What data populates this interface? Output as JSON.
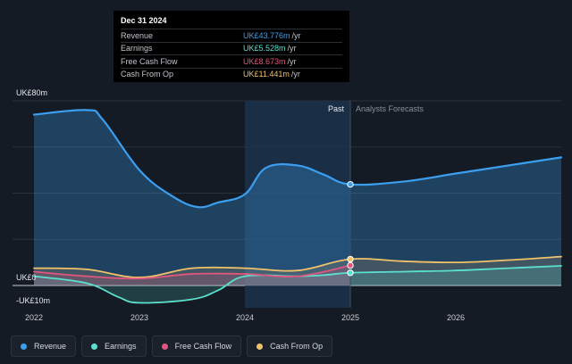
{
  "tooltip": {
    "date": "Dec 31 2024",
    "rows": [
      {
        "label": "Revenue",
        "value": "UK£43.776m",
        "unit": "/yr",
        "color": "#3b9ff0"
      },
      {
        "label": "Earnings",
        "value": "UK£5.528m",
        "unit": "/yr",
        "color": "#5be0d0"
      },
      {
        "label": "Free Cash Flow",
        "value": "UK£8.673m",
        "unit": "/yr",
        "color": "#e0567e"
      },
      {
        "label": "Cash From Op",
        "value": "UK£11.441m",
        "unit": "/yr",
        "color": "#f0c26a"
      }
    ]
  },
  "past_label": "Past",
  "forecast_label": "Analysts Forecasts",
  "legend": [
    {
      "label": "Revenue",
      "color": "#3b9ff0"
    },
    {
      "label": "Earnings",
      "color": "#5be0d0"
    },
    {
      "label": "Free Cash Flow",
      "color": "#e0567e"
    },
    {
      "label": "Cash From Op",
      "color": "#f0c26a"
    }
  ],
  "chart_data": {
    "type": "area",
    "title": "",
    "xlabel": "",
    "ylabel": "",
    "x_ticks": [
      "2022",
      "2023",
      "2024",
      "2025",
      "2026"
    ],
    "y_tick_labels": [
      "UK£80m",
      "UK£0",
      "-UK£10m"
    ],
    "xlim": [
      2022.0,
      2027.0
    ],
    "ylim": [
      -10,
      80
    ],
    "divider_x": 2025.0,
    "highlight_range": [
      2024.0,
      2025.0
    ],
    "series": [
      {
        "name": "Revenue",
        "color": "#3b9ff0",
        "x": [
          2022.0,
          2022.5,
          2022.65,
          2023.0,
          2023.3,
          2023.55,
          2023.75,
          2024.0,
          2024.2,
          2024.5,
          2024.75,
          2025.0,
          2025.5,
          2026.0,
          2026.5,
          2027.0
        ],
        "y": [
          74,
          76,
          72,
          50,
          39,
          34,
          36,
          39.5,
          51,
          52,
          48,
          43.8,
          45,
          48.5,
          52,
          55.5
        ]
      },
      {
        "name": "Earnings",
        "color": "#5be0d0",
        "x": [
          2022.0,
          2022.5,
          2022.8,
          2023.0,
          2023.5,
          2023.75,
          2024.0,
          2024.5,
          2024.75,
          2025.0,
          2025.5,
          2026.0,
          2026.5,
          2027.0
        ],
        "y": [
          4,
          1,
          -5,
          -7.5,
          -6,
          -2,
          4,
          4,
          4.5,
          5.5,
          6,
          6.5,
          7.5,
          8.5
        ]
      },
      {
        "name": "Free Cash Flow",
        "color": "#e0567e",
        "x": [
          2022.0,
          2022.5,
          2023.0,
          2023.5,
          2024.0,
          2024.5,
          2025.0
        ],
        "y": [
          6,
          4,
          3,
          5,
          5,
          4,
          8.7
        ]
      },
      {
        "name": "Cash From Op",
        "color": "#f0c26a",
        "x": [
          2022.0,
          2022.5,
          2023.0,
          2023.5,
          2024.0,
          2024.5,
          2025.0,
          2025.5,
          2026.0,
          2026.5,
          2027.0
        ],
        "y": [
          7.5,
          7,
          3.5,
          7.5,
          7.5,
          6.5,
          11.4,
          10.5,
          10,
          11,
          12.5
        ]
      }
    ]
  }
}
